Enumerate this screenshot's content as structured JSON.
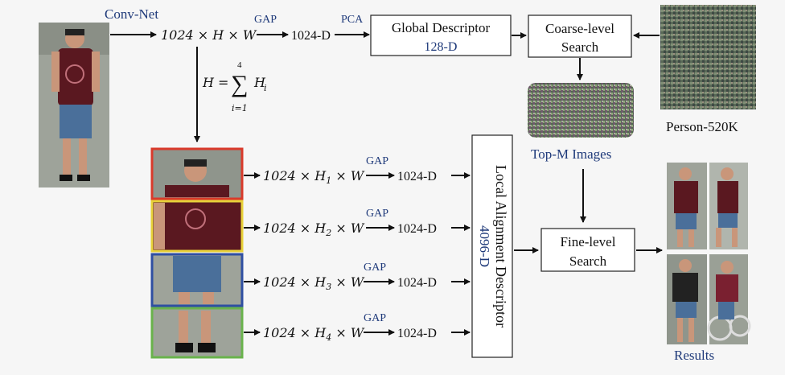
{
  "labels": {
    "conv_net": "Conv-Net",
    "feature_map": "1024 × H × W",
    "gap": "GAP",
    "vec_1024": "1024-D",
    "pca": "PCA",
    "global_title": "Global Descriptor",
    "global_dim": "128-D",
    "coarse_line1": "Coarse-level",
    "coarse_line2": "Search",
    "person_db": "Person-520K",
    "topm": "Top-M Images",
    "split_h": "H =",
    "sum_sym": "∑",
    "sum_top": "4",
    "sum_bottom": "i=1",
    "sum_term": "H",
    "sum_term_sub": "i",
    "local_title": "Local Alignment Descriptor",
    "local_dim": "4096-D",
    "fine_line1": "Fine-level",
    "fine_line2": "Search",
    "results": "Results"
  },
  "parts": [
    {
      "prefix": "1024 × H",
      "sub": "1",
      "suffix": " × W",
      "gap": "GAP",
      "out": "1024-D",
      "border": "#d93a2b"
    },
    {
      "prefix": "1024 × H",
      "sub": "2",
      "suffix": " × W",
      "gap": "GAP",
      "out": "1024-D",
      "border": "#e8d23a"
    },
    {
      "prefix": "1024 × H",
      "sub": "3",
      "suffix": " × W",
      "gap": "GAP",
      "out": "1024-D",
      "border": "#2f4fa2"
    },
    {
      "prefix": "1024 × H",
      "sub": "4",
      "suffix": " × W",
      "gap": "GAP",
      "out": "1024-D",
      "border": "#69b34c"
    }
  ],
  "colors": {
    "label_blue": "#1f3a7a",
    "shirt": "#5a1820",
    "shorts": "#4a6f9a",
    "skin": "#c9967a"
  }
}
